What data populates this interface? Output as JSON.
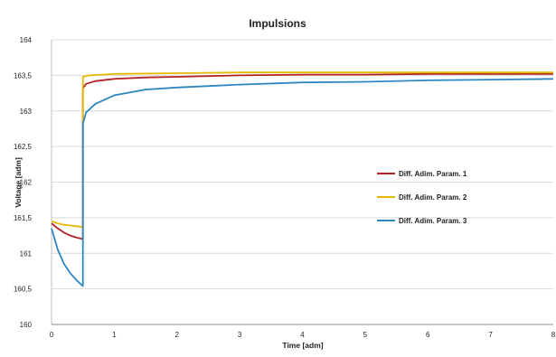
{
  "chart_data": {
    "type": "line",
    "title": "Impulsions",
    "xlabel": "Time [adm]",
    "ylabel": "Voltage [adm]",
    "xlim": [
      0,
      8
    ],
    "ylim": [
      160,
      164
    ],
    "x_ticks": [
      "0",
      "1",
      "2",
      "3",
      "4",
      "5",
      "6",
      "7",
      "8"
    ],
    "y_ticks": [
      "160",
      "160,5",
      "161",
      "161,5",
      "162",
      "162,5",
      "163",
      "163,5",
      "164"
    ],
    "grid": "horizontal",
    "legend_position": "right",
    "series": [
      {
        "name": "Diff. Adim. Param. 1",
        "color": "#b22222",
        "points": [
          [
            0,
            161.42
          ],
          [
            0.1,
            161.35
          ],
          [
            0.2,
            161.29
          ],
          [
            0.3,
            161.25
          ],
          [
            0.4,
            161.22
          ],
          [
            0.5,
            161.2
          ],
          [
            0.5,
            163.32
          ],
          [
            0.55,
            163.38
          ],
          [
            0.7,
            163.42
          ],
          [
            1,
            163.45
          ],
          [
            1.5,
            163.47
          ],
          [
            2,
            163.48
          ],
          [
            3,
            163.5
          ],
          [
            4,
            163.51
          ],
          [
            5,
            163.51
          ],
          [
            6,
            163.52
          ],
          [
            7,
            163.52
          ],
          [
            8,
            163.52
          ]
        ]
      },
      {
        "name": "Diff. Adim. Param. 2",
        "color": "#e6b800",
        "points": [
          [
            0,
            161.45
          ],
          [
            0.1,
            161.42
          ],
          [
            0.2,
            161.4
          ],
          [
            0.3,
            161.39
          ],
          [
            0.4,
            161.38
          ],
          [
            0.5,
            161.37
          ],
          [
            0.5,
            163.48
          ],
          [
            0.6,
            163.5
          ],
          [
            0.8,
            163.51
          ],
          [
            1,
            163.52
          ],
          [
            2,
            163.53
          ],
          [
            3,
            163.54
          ],
          [
            4,
            163.54
          ],
          [
            5,
            163.54
          ],
          [
            6,
            163.54
          ],
          [
            7,
            163.54
          ],
          [
            8,
            163.54
          ]
        ]
      },
      {
        "name": "Diff. Adim. Param. 3",
        "color": "#2e86c1",
        "points": [
          [
            0,
            161.35
          ],
          [
            0.05,
            161.2
          ],
          [
            0.1,
            161.05
          ],
          [
            0.2,
            160.85
          ],
          [
            0.3,
            160.72
          ],
          [
            0.4,
            160.62
          ],
          [
            0.5,
            160.54
          ],
          [
            0.5,
            162.82
          ],
          [
            0.55,
            162.98
          ],
          [
            0.7,
            163.1
          ],
          [
            1,
            163.22
          ],
          [
            1.5,
            163.3
          ],
          [
            2,
            163.33
          ],
          [
            3,
            163.37
          ],
          [
            4,
            163.4
          ],
          [
            5,
            163.41
          ],
          [
            6,
            163.43
          ],
          [
            7,
            163.44
          ],
          [
            8,
            163.45
          ]
        ]
      }
    ]
  }
}
